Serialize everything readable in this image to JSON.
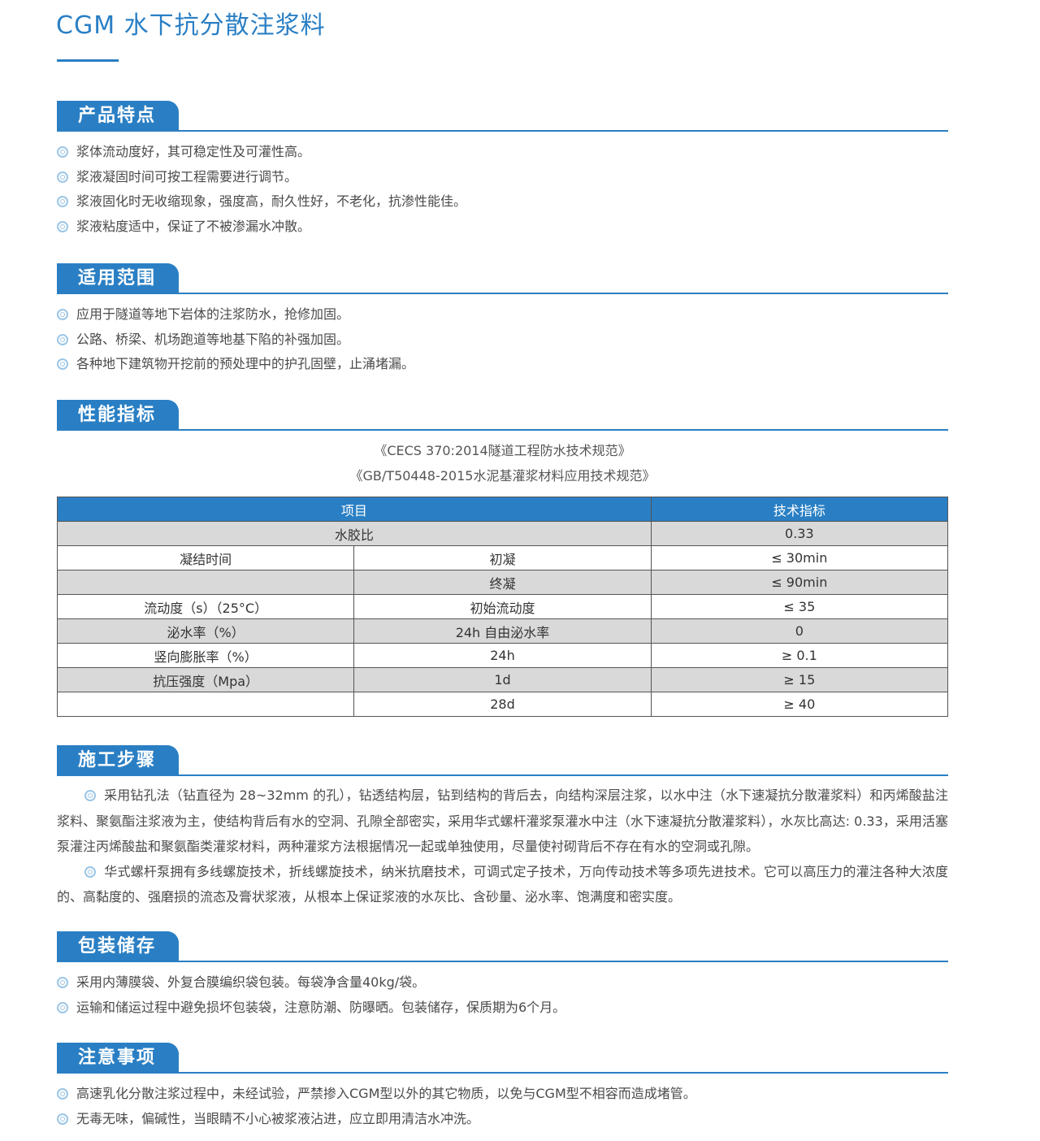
{
  "title": "CGM 水下抗分散注浆料",
  "sections": {
    "features": {
      "heading": "产品特点",
      "items": [
        "浆体流动度好，其可稳定性及可灌性高。",
        "浆液凝固时间可按工程需要进行调节。",
        "浆液固化时无收缩现象，强度高，耐久性好，不老化，抗渗性能佳。",
        "浆液粘度适中，保证了不被渗漏水冲散。"
      ]
    },
    "scope": {
      "heading": "适用范围",
      "items": [
        "应用于隧道等地下岩体的注浆防水，抢修加固。",
        "公路、桥梁、机场跑道等地基下陷的补强加固。",
        "各种地下建筑物开挖前的预处理中的护孔固壁，止涌堵漏。"
      ]
    },
    "performance": {
      "heading": "性能指标",
      "standards": [
        "《CECS 370:2014隧道工程防水技术规范》",
        "《GB/T50448-2015水泥基灌浆材料应用技术规范》"
      ],
      "table": {
        "headers": [
          "项目",
          "技术指标"
        ],
        "row0": [
          "水胶比",
          "0.33"
        ],
        "rows": [
          [
            "凝结时间",
            "初凝",
            "≤ 30min"
          ],
          [
            "",
            "终凝",
            "≤ 90min"
          ],
          [
            "流动度（s）（25°C）",
            "初始流动度",
            "≤ 35"
          ],
          [
            "泌水率（%）",
            "24h 自由泌水率",
            "0"
          ],
          [
            "竖向膨胀率（%）",
            "24h",
            "≥ 0.1"
          ],
          [
            "抗压强度（Mpa）",
            "1d",
            "≥ 15"
          ],
          [
            "",
            "28d",
            "≥ 40"
          ]
        ]
      }
    },
    "construction": {
      "heading": "施工步骤",
      "paragraphs": [
        "采用钻孔法（钻直径为 28~32mm 的孔），钻透结构层，钻到结构的背后去，向结构深层注浆，以水中注（水下速凝抗分散灌浆料）和丙烯酸盐注浆料、聚氨酯注浆液为主，使结构背后有水的空洞、孔隙全部密实，采用华式螺杆灌浆泵灌水中注（水下速凝抗分散灌浆料），水灰比高达: 0.33，采用活塞泵灌注丙烯酸盐和聚氨酯类灌浆材料，两种灌浆方法根据情况一起或单独使用，尽量使衬砌背后不存在有水的空洞或孔隙。",
        "华式螺杆泵拥有多线螺旋技术，折线螺旋技术，纳米抗磨技术，可调式定子技术，万向传动技术等多项先进技术。它可以高压力的灌注各种大浓度的、高黏度的、强磨损的流态及膏状浆液，从根本上保证浆液的水灰比、含砂量、泌水率、饱满度和密实度。"
      ]
    },
    "packaging": {
      "heading": "包装储存",
      "items": [
        "采用内薄膜袋、外复合膜编织袋包装。每袋净含量40kg/袋。",
        "运输和储运过程中避免损坏包装袋，注意防潮、防曝晒。包装储存，保质期为6个月。"
      ]
    },
    "notes": {
      "heading": "注意事项",
      "items": [
        "高速乳化分散注浆过程中，未经试验，严禁掺入CGM型以外的其它物质，以免与CGM型不相容而造成堵管。",
        "无毒无味，偏碱性，当眼睛不小心被浆液沾进，应立即用清洁水冲洗。"
      ]
    }
  },
  "colors": {
    "accent": "#2a7fc4",
    "row_gray": "#d9d9d9",
    "bullet": "#9cc6e6"
  },
  "icons": {
    "bullet": "double-circle-icon"
  }
}
